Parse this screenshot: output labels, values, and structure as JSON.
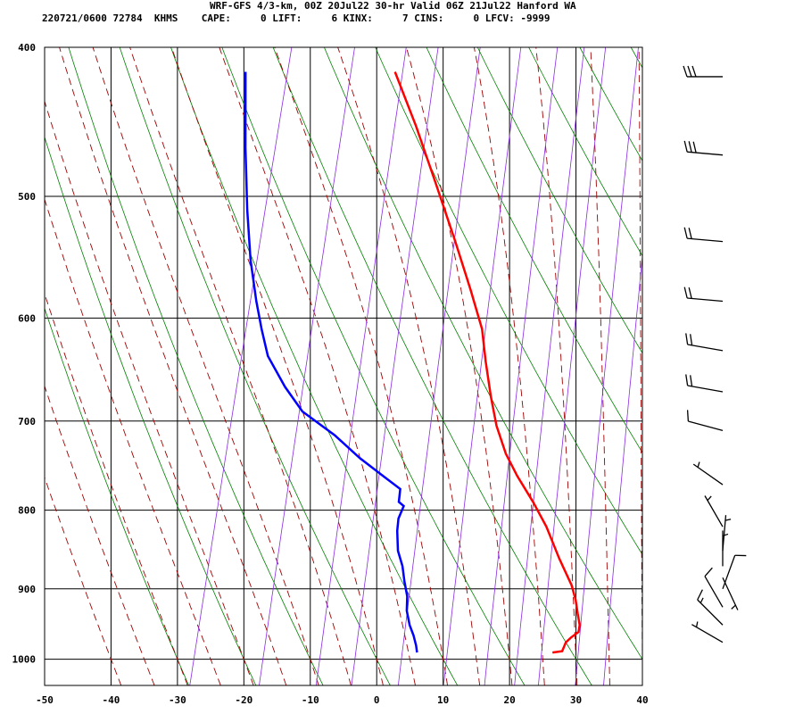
{
  "header": {
    "line1": "WRF-GFS 4/3-km, 00Z 20Jul22 30-hr Valid 06Z 21Jul22 Hanford WA",
    "line2": "220721/0600 72784  KHMS    CAPE:     0 LIFT:     6 KINX:     7 CINS:     0 LFCV: -9999"
  },
  "chart_data": {
    "type": "line",
    "subtype": "skew-t log-p sounding",
    "x_ticks": [
      -50,
      -40,
      -30,
      -20,
      -10,
      0,
      10,
      20,
      30,
      40
    ],
    "y_ticks": [
      400,
      500,
      600,
      700,
      800,
      900,
      1000
    ],
    "xlim": [
      -50,
      40
    ],
    "ylim": [
      1040,
      400
    ],
    "y_scale": "log",
    "grid": true,
    "colors": {
      "temperature": "#ff0000",
      "dewpoint": "#0000ff",
      "dry_adiabats": "#008000",
      "moist_adiabats": "#a00000",
      "mixing_ratio": "#8a2be2"
    },
    "series": [
      {
        "key": "temperature",
        "points": [
          [
            -20.5,
            415
          ],
          [
            -15.2,
            450
          ],
          [
            -10.0,
            490
          ],
          [
            -4.7,
            535
          ],
          [
            -0.5,
            575
          ],
          [
            2.8,
            610
          ],
          [
            4.6,
            640
          ],
          [
            6.8,
            675
          ],
          [
            8.8,
            705
          ],
          [
            11.3,
            735
          ],
          [
            13.9,
            760
          ],
          [
            17.3,
            790
          ],
          [
            20.3,
            820
          ],
          [
            23.5,
            860
          ],
          [
            26.4,
            895
          ],
          [
            27.6,
            915
          ],
          [
            28.5,
            935
          ],
          [
            29.2,
            950
          ],
          [
            29.3,
            960
          ],
          [
            28.4,
            968
          ],
          [
            27.8,
            975
          ],
          [
            27.6,
            988
          ],
          [
            26.2,
            990
          ]
        ]
      },
      {
        "key": "dewpoint",
        "points": [
          [
            -43.0,
            415
          ],
          [
            -40.0,
            465
          ],
          [
            -37.3,
            510
          ],
          [
            -34.8,
            550
          ],
          [
            -32.3,
            585
          ],
          [
            -30.4,
            610
          ],
          [
            -28.4,
            635
          ],
          [
            -24.6,
            665
          ],
          [
            -21.0,
            690
          ],
          [
            -15.2,
            715
          ],
          [
            -10.5,
            740
          ],
          [
            -6.3,
            760
          ],
          [
            -3.2,
            775
          ],
          [
            -2.9,
            790
          ],
          [
            -2.0,
            795
          ],
          [
            -2.3,
            810
          ],
          [
            -2.0,
            825
          ],
          [
            -1.1,
            850
          ],
          [
            0.2,
            870
          ],
          [
            1.1,
            890
          ],
          [
            2.1,
            910
          ],
          [
            2.6,
            930
          ],
          [
            3.6,
            950
          ],
          [
            4.6,
            965
          ],
          [
            5.4,
            980
          ],
          [
            5.8,
            990
          ]
        ]
      }
    ],
    "wind_barbs": [
      {
        "pressure": 418,
        "direction": 270,
        "speed_kt": 30
      },
      {
        "pressure": 470,
        "direction": 265,
        "speed_kt": 30
      },
      {
        "pressure": 535,
        "direction": 265,
        "speed_kt": 20
      },
      {
        "pressure": 585,
        "direction": 265,
        "speed_kt": 20
      },
      {
        "pressure": 630,
        "direction": 260,
        "speed_kt": 20
      },
      {
        "pressure": 670,
        "direction": 260,
        "speed_kt": 20
      },
      {
        "pressure": 710,
        "direction": 255,
        "speed_kt": 10
      },
      {
        "pressure": 770,
        "direction": 235,
        "speed_kt": 5
      },
      {
        "pressure": 820,
        "direction": 210,
        "speed_kt": 5
      },
      {
        "pressure": 850,
        "direction": 175,
        "speed_kt": 5
      },
      {
        "pressure": 870,
        "direction": 180,
        "speed_kt": 5
      },
      {
        "pressure": 885,
        "direction": 25,
        "speed_kt": 5
      },
      {
        "pressure": 900,
        "direction": 160,
        "speed_kt": 10
      },
      {
        "pressure": 925,
        "direction": 210,
        "speed_kt": 10
      },
      {
        "pressure": 950,
        "direction": 225,
        "speed_kt": 15
      },
      {
        "pressure": 975,
        "direction": 240,
        "speed_kt": 5
      }
    ]
  }
}
